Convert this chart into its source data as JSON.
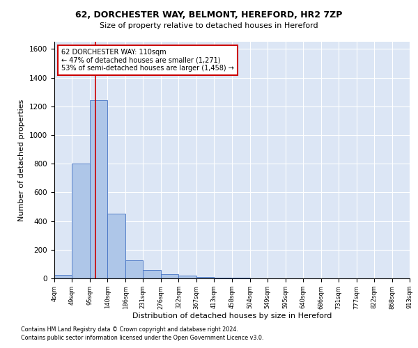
{
  "title_line1": "62, DORCHESTER WAY, BELMONT, HEREFORD, HR2 7ZP",
  "title_line2": "Size of property relative to detached houses in Hereford",
  "xlabel": "Distribution of detached houses by size in Hereford",
  "ylabel": "Number of detached properties",
  "footnote1": "Contains HM Land Registry data © Crown copyright and database right 2024.",
  "footnote2": "Contains public sector information licensed under the Open Government Licence v3.0.",
  "annotation_line1": "62 DORCHESTER WAY: 110sqm",
  "annotation_line2": "← 47% of detached houses are smaller (1,271)",
  "annotation_line3": "53% of semi-detached houses are larger (1,458) →",
  "bar_color": "#aec6e8",
  "bar_edge_color": "#4472c4",
  "red_line_color": "#cc0000",
  "annotation_box_color": "#cc0000",
  "background_color": "#dce6f5",
  "grid_color": "#ffffff",
  "bin_edges": [
    4,
    49,
    95,
    140,
    186,
    231,
    276,
    322,
    367,
    413,
    458,
    504,
    549,
    595,
    640,
    686,
    731,
    777,
    822,
    868,
    913
  ],
  "bin_labels": [
    "4sqm",
    "49sqm",
    "95sqm",
    "140sqm",
    "186sqm",
    "231sqm",
    "276sqm",
    "322sqm",
    "367sqm",
    "413sqm",
    "458sqm",
    "504sqm",
    "549sqm",
    "595sqm",
    "640sqm",
    "686sqm",
    "731sqm",
    "777sqm",
    "822sqm",
    "868sqm",
    "913sqm"
  ],
  "bar_heights": [
    25,
    800,
    1240,
    450,
    125,
    60,
    27,
    18,
    12,
    5,
    3,
    2,
    1,
    1,
    0,
    0,
    0,
    0,
    0,
    0
  ],
  "subject_size": 110,
  "ylim": [
    0,
    1650
  ],
  "yticks": [
    0,
    200,
    400,
    600,
    800,
    1000,
    1200,
    1400,
    1600
  ]
}
